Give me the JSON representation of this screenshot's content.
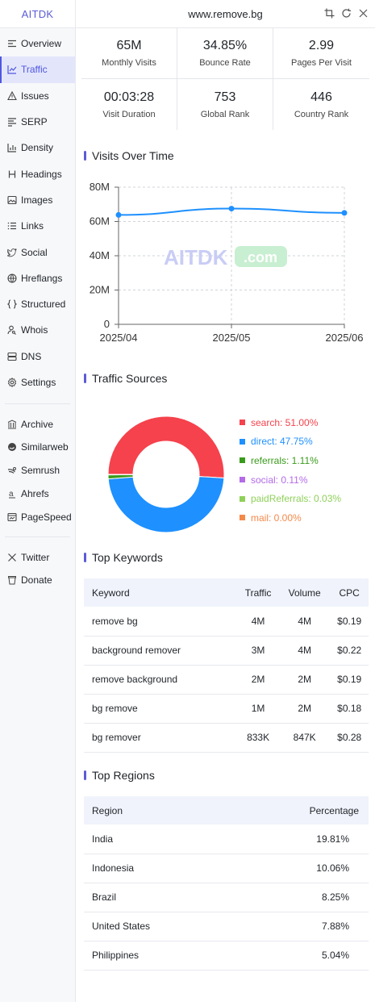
{
  "brand": "AITDK",
  "header": {
    "domain": "www.remove.bg"
  },
  "nav": {
    "items": [
      {
        "label": "Overview",
        "icon": "overview-icon"
      },
      {
        "label": "Traffic",
        "icon": "chart-line-icon",
        "active": true
      },
      {
        "label": "Issues",
        "icon": "warning-icon"
      },
      {
        "label": "SERP",
        "icon": "serp-icon"
      },
      {
        "label": "Density",
        "icon": "density-icon"
      },
      {
        "label": "Headings",
        "icon": "heading-icon"
      },
      {
        "label": "Images",
        "icon": "image-icon"
      },
      {
        "label": "Links",
        "icon": "list-icon"
      },
      {
        "label": "Social",
        "icon": "bird-icon"
      },
      {
        "label": "Hreflangs",
        "icon": "globe-icon"
      },
      {
        "label": "Structured",
        "icon": "braces-icon"
      },
      {
        "label": "Whois",
        "icon": "user-search-icon"
      },
      {
        "label": "DNS",
        "icon": "server-icon"
      },
      {
        "label": "Settings",
        "icon": "gear-icon"
      }
    ],
    "external": [
      {
        "label": "Archive",
        "icon": "archive-icon"
      },
      {
        "label": "Similarweb",
        "icon": "similarweb-icon"
      },
      {
        "label": "Semrush",
        "icon": "semrush-icon"
      },
      {
        "label": "Ahrefs",
        "icon": "ahrefs-icon"
      },
      {
        "label": "PageSpeed",
        "icon": "pagespeed-icon"
      }
    ],
    "social": [
      {
        "label": "Twitter",
        "icon": "x-icon"
      },
      {
        "label": "Donate",
        "icon": "cup-icon"
      }
    ]
  },
  "metrics": [
    {
      "value": "65M",
      "label": "Monthly Visits"
    },
    {
      "value": "34.85%",
      "label": "Bounce Rate"
    },
    {
      "value": "2.99",
      "label": "Pages Per Visit"
    },
    {
      "value": "00:03:28",
      "label": "Visit Duration"
    },
    {
      "value": "753",
      "label": "Global Rank"
    },
    {
      "value": "446",
      "label": "Country Rank"
    }
  ],
  "sections": {
    "visits": "Visits Over Time",
    "sources": "Traffic Sources",
    "keywords": "Top Keywords",
    "regions": "Top Regions"
  },
  "watermark": {
    "left": "AITDK",
    "right": ".com"
  },
  "chart_data": [
    {
      "type": "line",
      "x": [
        "2025/04",
        "2025/05",
        "2025/06"
      ],
      "series": [
        {
          "values": [
            63.8,
            67.5,
            65.0
          ]
        }
      ],
      "ylim": [
        0,
        80
      ],
      "yticks": [
        "0",
        "20M",
        "40M",
        "60M",
        "80M"
      ],
      "grid": true,
      "color": "#1e90ff"
    },
    {
      "type": "pie",
      "legend_position": "right",
      "slices": [
        {
          "label": "search",
          "text": "search: 51.00%",
          "value": 51.0,
          "color": "#f5424c"
        },
        {
          "label": "direct",
          "text": "direct: 47.75%",
          "value": 47.75,
          "color": "#1e90ff"
        },
        {
          "label": "referrals",
          "text": "referrals: 1.11%",
          "value": 1.11,
          "color": "#3a9a1c"
        },
        {
          "label": "social",
          "text": "social: 0.11%",
          "value": 0.11,
          "color": "#b36be8"
        },
        {
          "label": "paidReferrals",
          "text": "paidReferrals: 0.03%",
          "value": 0.03,
          "color": "#8fd05a"
        },
        {
          "label": "mail",
          "text": "mail: 0.00%",
          "value": 0.0,
          "color": "#f5894a"
        }
      ]
    }
  ],
  "keywords": {
    "headers": [
      "Keyword",
      "Traffic",
      "Volume",
      "CPC"
    ],
    "rows": [
      [
        "remove bg",
        "4M",
        "4M",
        "$0.19"
      ],
      [
        "background remover",
        "3M",
        "4M",
        "$0.22"
      ],
      [
        "remove background",
        "2M",
        "2M",
        "$0.19"
      ],
      [
        "bg remove",
        "1M",
        "2M",
        "$0.18"
      ],
      [
        "bg remover",
        "833K",
        "847K",
        "$0.28"
      ]
    ]
  },
  "regions": {
    "headers": [
      "Region",
      "Percentage"
    ],
    "rows": [
      [
        "India",
        "19.81%"
      ],
      [
        "Indonesia",
        "10.06%"
      ],
      [
        "Brazil",
        "8.25%"
      ],
      [
        "United States",
        "7.88%"
      ],
      [
        "Philippines",
        "5.04%"
      ]
    ]
  }
}
